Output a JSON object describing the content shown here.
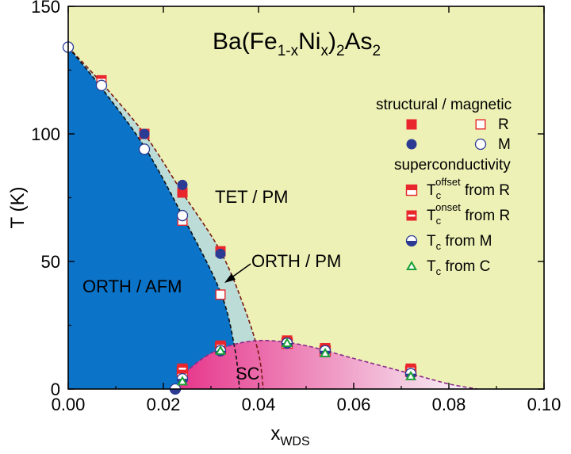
{
  "chart_data": {
    "type": "scatter",
    "title_parts": [
      {
        "t": "Ba(Fe",
        "s": "n"
      },
      {
        "t": "1-x",
        "s": "sub"
      },
      {
        "t": "Ni",
        "s": "n"
      },
      {
        "t": "x",
        "s": "sub"
      },
      {
        "t": ")",
        "s": "n"
      },
      {
        "t": "2",
        "s": "sub"
      },
      {
        "t": "As",
        "s": "n"
      },
      {
        "t": "2",
        "s": "sub"
      }
    ],
    "xlabel_main": "x",
    "xlabel_sub": "WDS",
    "ylabel": "T (K)",
    "xlim": [
      0.0,
      0.1
    ],
    "ylim": [
      0,
      150
    ],
    "x_ticks": [
      "0.00",
      "0.02",
      "0.04",
      "0.06",
      "0.08",
      "0.10"
    ],
    "y_ticks": [
      "0",
      "50",
      "100",
      "150"
    ],
    "colors": {
      "tet_pm": "#eef1b6",
      "orth_afm": "#0b73c8",
      "orth_pm": "#bcdcd7",
      "sc_start": "#e6338a",
      "sc_end": "#f8f9fb",
      "marker_red": "#e8262b",
      "marker_blue": "#2b3a93",
      "marker_green": "#1aa038",
      "boundary": "#7a1a10"
    },
    "boundaries": {
      "structural": [
        [
          0.0,
          134
        ],
        [
          0.007,
          120
        ],
        [
          0.016,
          100
        ],
        [
          0.024,
          77
        ],
        [
          0.032,
          54
        ],
        [
          0.037,
          32
        ],
        [
          0.04,
          14
        ],
        [
          0.041,
          0
        ]
      ],
      "magnetic": [
        [
          0.0,
          134
        ],
        [
          0.007,
          118
        ],
        [
          0.016,
          95
        ],
        [
          0.024,
          68
        ],
        [
          0.032,
          38
        ],
        [
          0.035,
          16
        ],
        [
          0.036,
          0
        ]
      ],
      "superconducting": [
        [
          0.0225,
          0
        ],
        [
          0.025,
          7
        ],
        [
          0.03,
          14
        ],
        [
          0.036,
          18
        ],
        [
          0.042,
          19
        ],
        [
          0.05,
          17
        ],
        [
          0.06,
          12
        ],
        [
          0.072,
          6
        ],
        [
          0.08,
          2
        ],
        [
          0.086,
          0
        ]
      ]
    },
    "regions": {
      "tet_pm": "TET / PM",
      "orth_pm": "ORTH / PM",
      "orth_afm": "ORTH / AFM",
      "sc": "SC"
    },
    "series": [
      {
        "key": "struct_R",
        "marker": "square_filled",
        "points": [
          [
            0.007,
            121
          ],
          [
            0.016,
            100
          ],
          [
            0.024,
            77
          ],
          [
            0.032,
            54
          ]
        ]
      },
      {
        "key": "struct_M",
        "marker": "circle_filled",
        "points": [
          [
            0.016,
            100
          ],
          [
            0.024,
            80
          ],
          [
            0.032,
            53
          ]
        ]
      },
      {
        "key": "mag_R",
        "marker": "square_open",
        "points": [
          [
            0.007,
            120
          ],
          [
            0.024,
            66
          ],
          [
            0.032,
            37
          ]
        ]
      },
      {
        "key": "mag_M",
        "marker": "circle_open",
        "points": [
          [
            0.0,
            134
          ],
          [
            0.007,
            119
          ],
          [
            0.016,
            94
          ],
          [
            0.024,
            68
          ]
        ]
      },
      {
        "key": "tc_offset_R",
        "marker": "square_top_half",
        "points": [
          [
            0.024,
            7
          ],
          [
            0.032,
            16
          ],
          [
            0.046,
            18
          ],
          [
            0.054,
            15
          ],
          [
            0.072,
            7
          ]
        ]
      },
      {
        "key": "tc_onset_R",
        "marker": "square_mid_band",
        "points": [
          [
            0.024,
            8
          ],
          [
            0.032,
            17
          ],
          [
            0.046,
            19
          ],
          [
            0.054,
            16
          ],
          [
            0.072,
            8
          ]
        ]
      },
      {
        "key": "tc_M",
        "marker": "circle_bottom_half",
        "points": [
          [
            0.0225,
            0
          ],
          [
            0.024,
            4
          ],
          [
            0.032,
            15
          ],
          [
            0.046,
            18
          ],
          [
            0.054,
            15
          ],
          [
            0.072,
            6
          ]
        ]
      },
      {
        "key": "tc_C",
        "marker": "triangle_green",
        "points": [
          [
            0.024,
            3
          ],
          [
            0.032,
            15
          ],
          [
            0.046,
            18
          ],
          [
            0.054,
            14
          ],
          [
            0.072,
            5
          ]
        ]
      }
    ],
    "legend": {
      "position": "upper-right",
      "header1": "structural / magnetic",
      "r_label": "R",
      "m_label": "M",
      "header2": "superconductivity",
      "entries": [
        {
          "marker": "square_top_half",
          "sub": "c",
          "sup": "offset",
          "suffix": " from R"
        },
        {
          "marker": "square_mid_band",
          "sub": "c",
          "sup": "onset",
          "suffix": " from R"
        },
        {
          "marker": "circle_bottom_half",
          "sub": "c",
          "sup": "",
          "suffix": " from M"
        },
        {
          "marker": "triangle_green",
          "sub": "c",
          "sup": "",
          "suffix": " from C"
        }
      ],
      "tc_main": "T"
    }
  }
}
